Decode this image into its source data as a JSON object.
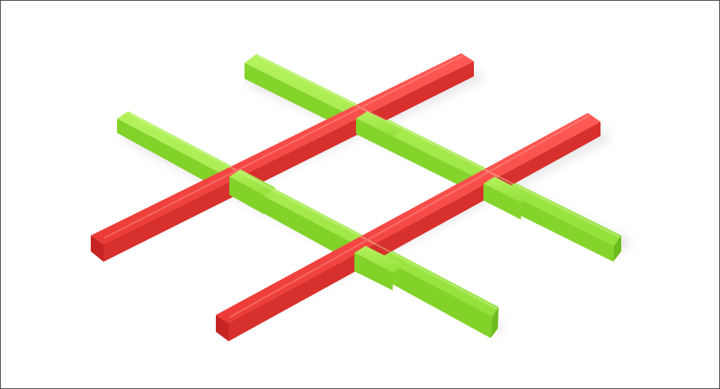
{
  "scene": {
    "description_visible": "",
    "colors": {
      "background": "#ffffff",
      "frame": "#4a4a4a",
      "green_top": "#9be63f",
      "green_side": "#7fd226",
      "green_end": "#6bbd1c",
      "red_top": "#f0433f",
      "red_side": "#d52d2b",
      "red_end": "#c42422",
      "shadow": "#d9d9d9"
    },
    "objects": [
      {
        "name": "green-stick-back",
        "color": "green"
      },
      {
        "name": "green-stick-front",
        "color": "green"
      },
      {
        "name": "red-stick-back",
        "color": "red"
      },
      {
        "name": "red-stick-front",
        "color": "red"
      }
    ]
  }
}
